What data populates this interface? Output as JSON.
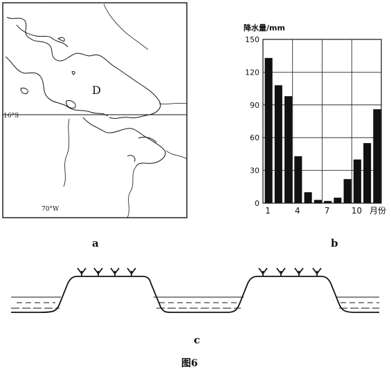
{
  "map": {
    "lake_label": "D",
    "lat_label": "16°S",
    "lon_label": "70°W",
    "panel_label": "a"
  },
  "chart": {
    "panel_label": "b",
    "ylabel": "降水量/mm",
    "xlabel_unit": "月份",
    "yticks": [
      "150",
      "120",
      "90",
      "60",
      "30",
      "0"
    ],
    "xticks": [
      "1",
      "4",
      "7",
      "10"
    ]
  },
  "chart_data": {
    "type": "bar",
    "categories": [
      1,
      2,
      3,
      4,
      5,
      6,
      7,
      8,
      9,
      10,
      11,
      12
    ],
    "values": [
      133,
      108,
      98,
      43,
      10,
      3,
      2,
      5,
      22,
      40,
      55,
      86
    ],
    "ylabel": "降水量/mm",
    "xlabel": "月份",
    "ylim": [
      0,
      150
    ],
    "grid": true
  },
  "section": {
    "panel_label": "c"
  },
  "figure_title": "图6"
}
